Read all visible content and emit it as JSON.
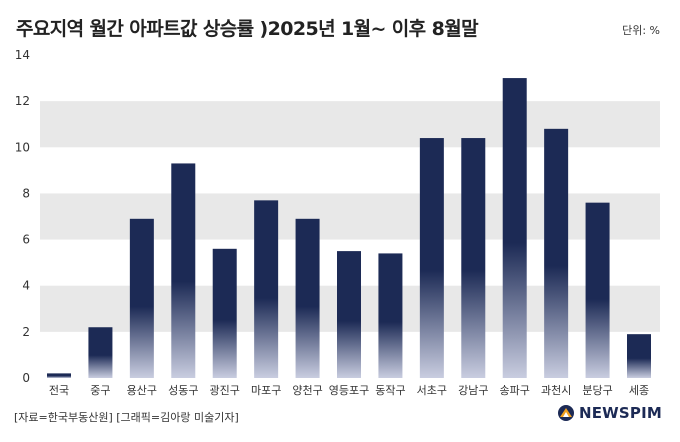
{
  "title": "주요지역 월간 아파트값 상승률 )2025년 1월~ 이후 8월말",
  "unit": "단위: %",
  "source": "[자료=한국부동산원] [그래픽=김아랑 미술기자]",
  "logo": {
    "text": "NEWSPIM",
    "icon": "newspim-logo-icon",
    "color": "#1c2a55"
  },
  "chart_data": {
    "type": "bar",
    "categories": [
      "전국",
      "중구",
      "용산구",
      "성동구",
      "광진구",
      "마포구",
      "양천구",
      "영등포구",
      "동작구",
      "서초구",
      "강남구",
      "송파구",
      "과천시",
      "분당구",
      "세종"
    ],
    "values": [
      0.2,
      2.2,
      6.9,
      9.3,
      5.6,
      7.7,
      6.9,
      5.5,
      5.4,
      10.4,
      10.4,
      13.0,
      10.8,
      7.6,
      1.9
    ],
    "ylim": [
      0,
      14
    ],
    "yticks": [
      "0",
      "2",
      "4",
      "6",
      "8",
      "10",
      "12",
      "14"
    ],
    "xlabel": "",
    "ylabel": "",
    "grid": "alternating horizontal bands",
    "bar_color_top": "#1c2a55",
    "bar_color_bottom": "#c9cde0",
    "band_color": "#e8e8e8"
  }
}
